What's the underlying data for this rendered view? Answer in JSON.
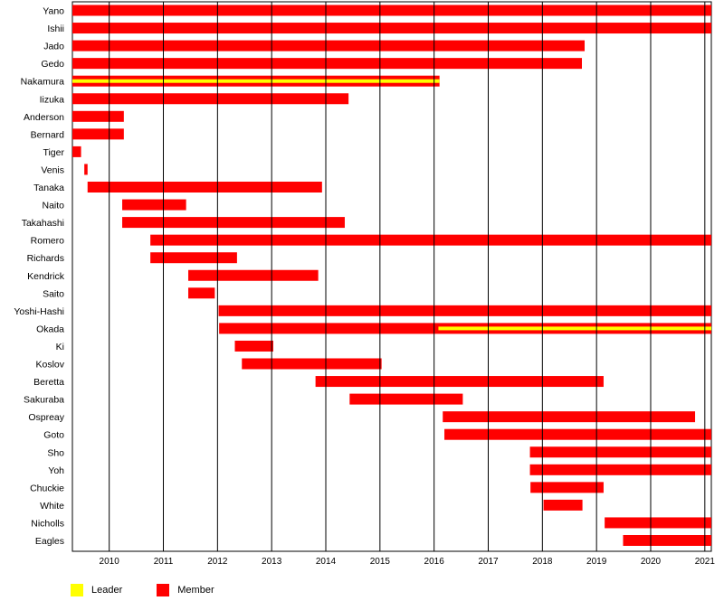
{
  "chart_data": {
    "type": "timeline",
    "x_ticks": [
      "2010",
      "2011",
      "2012",
      "2013",
      "2014",
      "2015",
      "2016",
      "2017",
      "2018",
      "2019",
      "2020",
      "2021"
    ],
    "xlim": [
      2009.32,
      2021.12
    ],
    "legend": {
      "placement": "bottom-left",
      "entries": [
        {
          "label": "Leader",
          "color": "#ffff00"
        },
        {
          "label": "Member",
          "color": "#ff0000"
        }
      ]
    },
    "colors": {
      "member": "#ff0000",
      "leader": "#ffff00"
    },
    "members": [
      {
        "name": "Yano",
        "spans": [
          [
            2009.32,
            2021.12
          ]
        ]
      },
      {
        "name": "Ishii",
        "spans": [
          [
            2009.32,
            2021.12
          ]
        ]
      },
      {
        "name": "Jado",
        "spans": [
          [
            2009.32,
            2018.78
          ]
        ]
      },
      {
        "name": "Gedo",
        "spans": [
          [
            2009.32,
            2018.73
          ]
        ]
      },
      {
        "name": "Nakamura",
        "spans": [
          [
            2009.32,
            2016.1
          ]
        ],
        "leader": [
          [
            2009.32,
            2016.1
          ]
        ]
      },
      {
        "name": "Iizuka",
        "spans": [
          [
            2009.32,
            2014.42
          ]
        ]
      },
      {
        "name": "Anderson",
        "spans": [
          [
            2009.32,
            2010.27
          ]
        ]
      },
      {
        "name": "Bernard",
        "spans": [
          [
            2009.32,
            2010.27
          ]
        ]
      },
      {
        "name": "Tiger",
        "spans": [
          [
            2009.32,
            2009.48
          ]
        ]
      },
      {
        "name": "Venis",
        "spans": [
          [
            2009.54,
            2009.6
          ]
        ]
      },
      {
        "name": "Tanaka",
        "spans": [
          [
            2009.6,
            2013.93
          ]
        ]
      },
      {
        "name": "Naito",
        "spans": [
          [
            2010.24,
            2011.42
          ]
        ]
      },
      {
        "name": "Takahashi",
        "spans": [
          [
            2010.24,
            2014.35
          ]
        ]
      },
      {
        "name": "Romero",
        "spans": [
          [
            2010.76,
            2021.12
          ]
        ]
      },
      {
        "name": "Richards",
        "spans": [
          [
            2010.76,
            2012.36
          ]
        ]
      },
      {
        "name": "Kendrick",
        "spans": [
          [
            2011.46,
            2013.86
          ]
        ]
      },
      {
        "name": "Saito",
        "spans": [
          [
            2011.46,
            2011.95
          ]
        ]
      },
      {
        "name": "Yoshi-Hashi",
        "spans": [
          [
            2012.02,
            2021.12
          ]
        ]
      },
      {
        "name": "Okada",
        "spans": [
          [
            2012.03,
            2021.12
          ]
        ],
        "leader": [
          [
            2016.08,
            2021.12
          ]
        ]
      },
      {
        "name": "Ki",
        "spans": [
          [
            2012.32,
            2013.03
          ]
        ]
      },
      {
        "name": "Koslov",
        "spans": [
          [
            2012.45,
            2015.03
          ]
        ]
      },
      {
        "name": "Beretta",
        "spans": [
          [
            2013.81,
            2019.13
          ]
        ]
      },
      {
        "name": "Sakuraba",
        "spans": [
          [
            2014.44,
            2016.53
          ]
        ]
      },
      {
        "name": "Ospreay",
        "spans": [
          [
            2016.16,
            2020.82
          ]
        ]
      },
      {
        "name": "Goto",
        "spans": [
          [
            2016.19,
            2021.12
          ]
        ]
      },
      {
        "name": "Sho",
        "spans": [
          [
            2017.77,
            2021.12
          ]
        ]
      },
      {
        "name": "Yoh",
        "spans": [
          [
            2017.77,
            2021.12
          ]
        ]
      },
      {
        "name": "Chuckie",
        "spans": [
          [
            2017.78,
            2019.13
          ]
        ]
      },
      {
        "name": "White",
        "spans": [
          [
            2018.02,
            2018.74
          ]
        ]
      },
      {
        "name": "Nicholls",
        "spans": [
          [
            2019.15,
            2021.12
          ]
        ]
      },
      {
        "name": "Eagles",
        "spans": [
          [
            2019.49,
            2021.12
          ]
        ]
      }
    ]
  }
}
